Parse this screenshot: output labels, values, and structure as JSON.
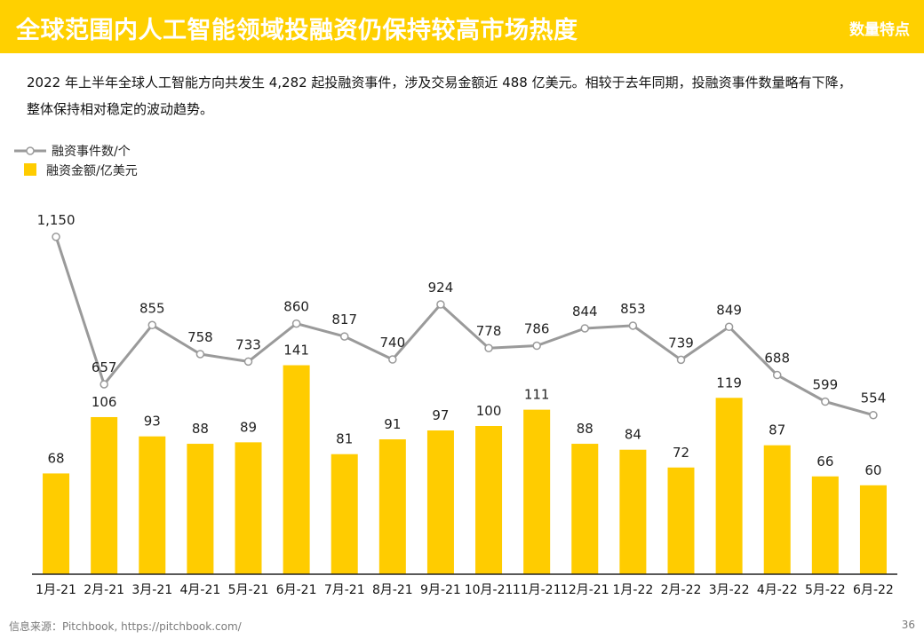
{
  "header": {
    "title": "全球范围内人工智能领域投融资仍保持较高市场热度",
    "tag": "数量特点"
  },
  "summary": {
    "line1": "2022 年上半年全球人工智能方向共发生 4,282 起投融资事件，涉及交易金额近 488 亿美元。相较于去年同期，投融资事件数量略有下降，",
    "line2": "整体保持相对稳定的波动趋势。"
  },
  "footer": {
    "source": "信息来源：Pitchbook, https://pitchbook.com/",
    "page": "36"
  },
  "colors": {
    "brand_yellow": "#ffd000",
    "bar": "#ffcc00",
    "line": "#9a9a9a"
  },
  "chart_data": {
    "type": "bar",
    "title": "",
    "xlabel": "",
    "ylabel": "",
    "categories": [
      "1月-21",
      "2月-21",
      "3月-21",
      "4月-21",
      "5月-21",
      "6月-21",
      "7月-21",
      "8月-21",
      "9月-21",
      "10月-21",
      "11月-21",
      "12月-21",
      "1月-22",
      "2月-22",
      "3月-22",
      "4月-22",
      "5月-22",
      "6月-22"
    ],
    "series": [
      {
        "name": "融资事件数/个",
        "type": "line",
        "values": [
          1150,
          657,
          855,
          758,
          733,
          860,
          817,
          740,
          924,
          778,
          786,
          844,
          853,
          739,
          849,
          688,
          599,
          554
        ],
        "labels": [
          "1,150",
          "657",
          "855",
          "758",
          "733",
          "860",
          "817",
          "740",
          "924",
          "778",
          "786",
          "844",
          "853",
          "739",
          "849",
          "688",
          "599",
          "554"
        ]
      },
      {
        "name": "融资金额/亿美元",
        "type": "bar",
        "values": [
          68,
          106,
          93,
          88,
          89,
          141,
          81,
          91,
          97,
          100,
          111,
          88,
          84,
          72,
          119,
          87,
          66,
          60
        ]
      }
    ],
    "legend_position": "top-left",
    "grid": false
  }
}
